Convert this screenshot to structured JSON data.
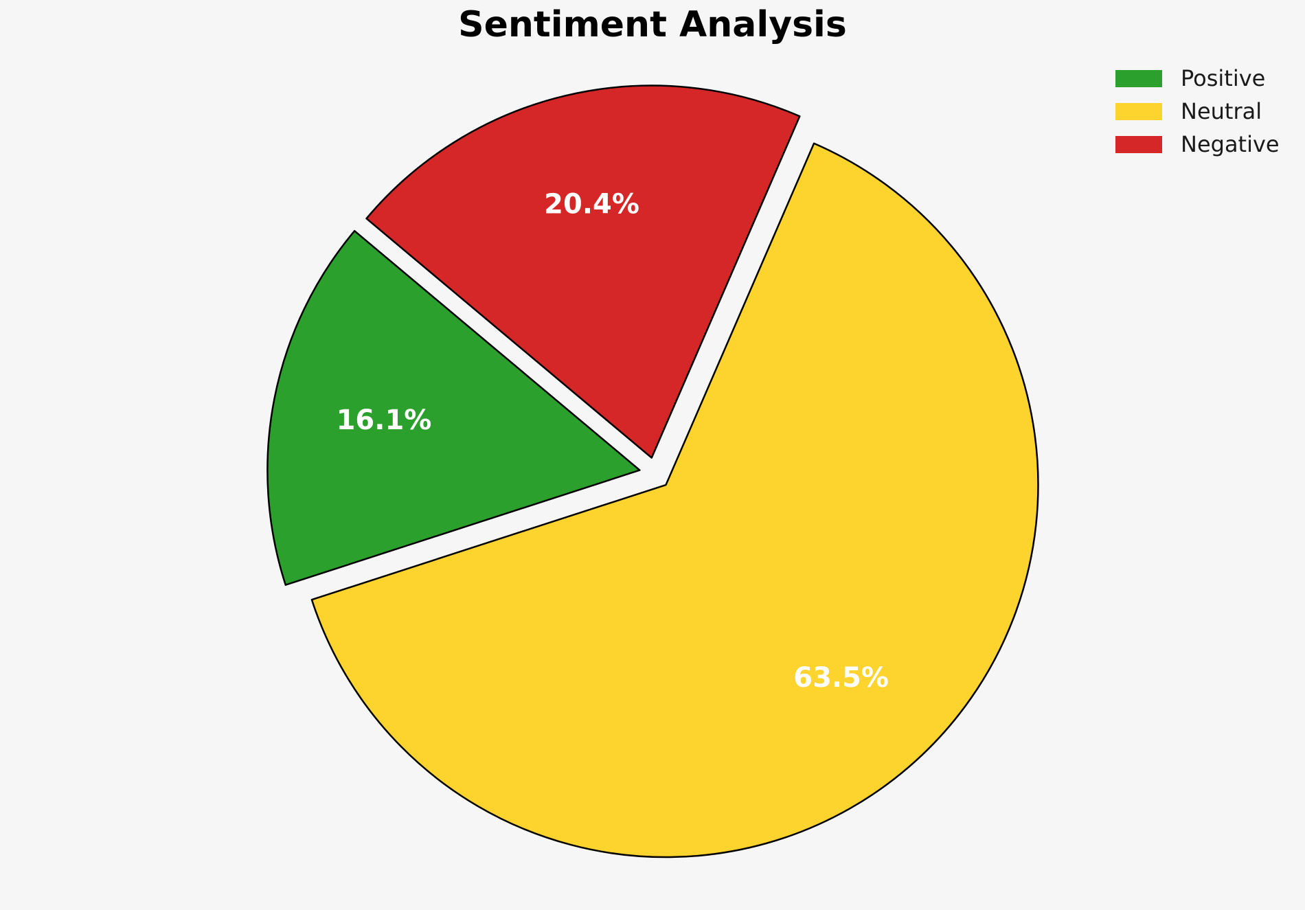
{
  "background_color": "#f6f6f6",
  "chart_data": {
    "type": "pie",
    "title": "Sentiment Analysis",
    "categories": [
      "Positive",
      "Neutral",
      "Negative"
    ],
    "values": [
      16.1,
      63.5,
      20.4
    ],
    "slices": [
      {
        "label": "Positive",
        "value": 16.1,
        "pct_label": "16.1%",
        "color": "#2ca02c"
      },
      {
        "label": "Neutral",
        "value": 63.5,
        "pct_label": "63.5%",
        "color": "#fdd32e"
      },
      {
        "label": "Negative",
        "value": 20.4,
        "pct_label": "20.4%",
        "color": "#d62728"
      }
    ],
    "legend_position": "upper right",
    "legend_frame": false,
    "start_angle": 140,
    "counterclockwise": true,
    "explode": 0.0425,
    "pct_distance": 0.7,
    "edge_color": "#000000",
    "edge_width": 2.5,
    "label_color": "#ffffff"
  }
}
